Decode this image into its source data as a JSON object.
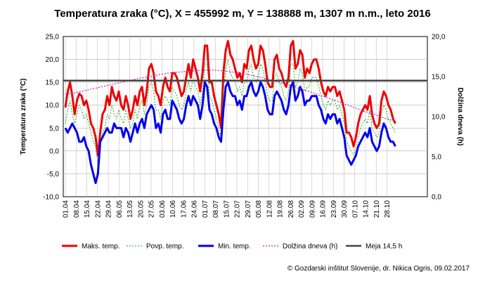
{
  "chart_data": {
    "type": "line",
    "title": "Temperatura zraka (°C), X = 455992 m, Y = 138888 m, 1307 m n.m., leto 2016",
    "ylabel_left": "Temperatura zraka (°C)",
    "ylabel_right": "Dolžina dneva (h)",
    "ylim_left": [
      -10,
      25
    ],
    "ylim_right": [
      0,
      20
    ],
    "yticks_left": [
      "25,0",
      "20,0",
      "15,0",
      "10,0",
      "5,0",
      "0,0",
      "-5,0",
      "-10,0"
    ],
    "yticks_right": [
      "20,0",
      "15,0",
      "10,0",
      "5,0",
      "0,0"
    ],
    "xticks": [
      "01.04",
      "08.04",
      "15.04",
      "22.04",
      "29.04",
      "06.05",
      "13.05",
      "20.05",
      "27.05",
      "03.06",
      "10.06",
      "17.06",
      "24.06",
      "01.07",
      "08.07",
      "15.07",
      "22.07",
      "29.07",
      "05.08",
      "12.08",
      "19.08",
      "26.08",
      "02.09",
      "09.09",
      "16.09",
      "23.09",
      "30.09",
      "07.10",
      "14.10",
      "21.10",
      "28.10"
    ],
    "x_start": "01.04",
    "grid": true,
    "legend_position": "bottom",
    "series": [
      {
        "name": "Maks. temp.",
        "axis": "left",
        "color": "#ee0000",
        "values": [
          9.5,
          13,
          15,
          12,
          8,
          11,
          12.5,
          12,
          10,
          11,
          9,
          6,
          5,
          3,
          -1,
          4,
          8,
          9,
          12,
          10,
          14,
          12,
          11,
          13,
          10,
          9,
          12,
          10,
          7,
          9,
          12,
          10,
          13,
          14,
          10,
          13,
          18,
          19,
          17,
          13,
          12,
          10,
          14,
          16,
          14,
          13,
          17,
          17,
          16,
          14,
          12,
          13,
          16,
          19,
          16,
          20,
          18,
          16,
          13,
          17,
          23,
          23,
          15,
          15,
          12,
          10,
          8,
          5,
          17,
          22,
          24,
          21,
          20,
          18,
          16,
          17,
          15,
          19,
          18,
          22,
          23,
          20,
          18,
          19,
          23,
          22,
          19,
          15,
          14,
          14,
          20,
          21,
          18,
          17,
          15,
          14,
          16,
          23,
          24,
          18,
          19,
          22,
          21,
          16,
          18,
          17,
          19,
          20,
          20,
          18,
          15,
          13,
          12,
          14,
          13,
          14,
          14,
          12,
          13,
          11,
          9,
          4,
          4,
          3,
          1,
          3,
          6,
          8,
          9,
          10,
          9,
          12,
          8,
          6,
          5,
          6,
          11,
          13,
          12,
          10,
          9,
          7,
          6
        ]
      },
      {
        "name": "Povp. temp.",
        "axis": "left",
        "color": "#22aa22",
        "values": [
          6,
          9,
          11,
          8,
          6,
          8,
          10,
          9,
          7,
          8,
          6,
          4,
          2,
          1,
          -3,
          1,
          4,
          5,
          8,
          7,
          10,
          8,
          7,
          9,
          7,
          6,
          9,
          7,
          5,
          6,
          9,
          7,
          10,
          11,
          8,
          10,
          14,
          15,
          13,
          9,
          9,
          7,
          11,
          12,
          11,
          10,
          14,
          13,
          12,
          10,
          9,
          10,
          13,
          15,
          13,
          16,
          14,
          13,
          10,
          13,
          19,
          19,
          12,
          11,
          9,
          7,
          5,
          3,
          13,
          18,
          20,
          17,
          16,
          15,
          13,
          14,
          12,
          15,
          15,
          18,
          19,
          16,
          15,
          16,
          19,
          18,
          15,
          12,
          11,
          11,
          16,
          17,
          15,
          14,
          12,
          11,
          13,
          19,
          19,
          14,
          15,
          18,
          17,
          13,
          14,
          14,
          16,
          16,
          16,
          14,
          12,
          10,
          9,
          11,
          10,
          11,
          11,
          9,
          10,
          8,
          6,
          2,
          1,
          0,
          -1,
          1,
          3,
          5,
          6,
          7,
          6,
          9,
          5,
          4,
          3,
          4,
          8,
          10,
          9,
          7,
          6,
          5,
          4
        ]
      },
      {
        "name": "Min. temp.",
        "axis": "left",
        "color": "#0000ee",
        "values": [
          5,
          4,
          5,
          6,
          5,
          4,
          2,
          2,
          3,
          1,
          0,
          -3,
          -5,
          -7,
          -5,
          2,
          3,
          4,
          5,
          4,
          4,
          6,
          5,
          5,
          5,
          3,
          5,
          4,
          2,
          4,
          6,
          4,
          6,
          7,
          5,
          8,
          9,
          10,
          9,
          5,
          6,
          4,
          8,
          9,
          7,
          7,
          11,
          10,
          9,
          7,
          6,
          7,
          10,
          12,
          10,
          12,
          11,
          10,
          7,
          10,
          15,
          14,
          9,
          8,
          6,
          5,
          3,
          2,
          9,
          14,
          15,
          13,
          12,
          12,
          10,
          11,
          9,
          12,
          12,
          14,
          15,
          13,
          12,
          13,
          15,
          14,
          12,
          9,
          8,
          8,
          12,
          13,
          12,
          11,
          9,
          8,
          10,
          14,
          15,
          11,
          12,
          14,
          13,
          10,
          11,
          11,
          12,
          12,
          12,
          10,
          9,
          7,
          6,
          8,
          7,
          8,
          8,
          6,
          7,
          5,
          3,
          -1,
          -2,
          -3,
          -2,
          -1,
          1,
          2,
          3,
          4,
          3,
          5,
          2,
          1,
          0,
          1,
          4,
          6,
          5,
          3,
          2,
          2,
          1
        ]
      },
      {
        "name": "Dolžina dneva (h)",
        "axis": "right",
        "color": "#bb22bb",
        "values": [
          12.8,
          13.0,
          13.3,
          13.6,
          13.9,
          14.2,
          14.5,
          14.8,
          15.0,
          15.3,
          15.5,
          15.6,
          15.7,
          15.8,
          15.8,
          15.7,
          15.5,
          15.3,
          15.0,
          14.7,
          14.3,
          13.9,
          13.5,
          13.1,
          12.6,
          12.2,
          11.7,
          11.2,
          10.7,
          10.3,
          9.8,
          9.4
        ]
      },
      {
        "name": "Meja 14,5 h",
        "axis": "right",
        "color": "#444444",
        "values": [
          14.5
        ]
      }
    ]
  },
  "footer": {
    "credit": "© Gozdarski inštitut Slovenije, dr. Nikica Ogris, 09.02.2017"
  }
}
